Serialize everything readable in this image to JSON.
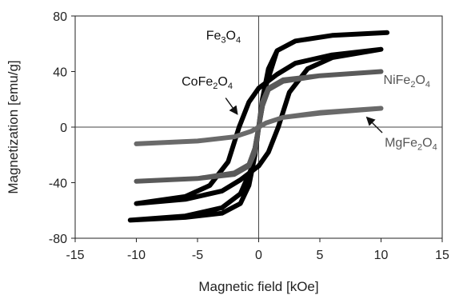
{
  "chart_data": {
    "type": "line",
    "xlabel": "Magnetic field [kOe]",
    "ylabel": "Magnetization [emu/g]",
    "xlim": [
      -15,
      15
    ],
    "ylim": [
      -80,
      80
    ],
    "x_ticks": [
      -15,
      -10,
      -5,
      0,
      5,
      10,
      15
    ],
    "y_ticks": [
      -80,
      -40,
      0,
      40,
      80
    ],
    "x_tick_labels": [
      "-15",
      "-10",
      "-5",
      "0",
      "5",
      "10",
      "15"
    ],
    "y_tick_labels": [
      "-80",
      "-40",
      "0",
      "40",
      "80"
    ],
    "grid": false,
    "zero_lines": true,
    "legend": "none",
    "series": [
      {
        "name": "Fe3O4",
        "label_main": "Fe",
        "label_parts": [
          {
            "t": "Fe"
          },
          {
            "t": "3",
            "sub": true
          },
          {
            "t": "O"
          },
          {
            "t": "4",
            "sub": true
          }
        ],
        "color": "#000000",
        "label_at": [
          -4.3,
          63
        ],
        "upper": [
          [
            -10.5,
            -67
          ],
          [
            -6,
            -64
          ],
          [
            -3,
            -58
          ],
          [
            -1.5,
            -48
          ],
          [
            -0.6,
            -30
          ],
          [
            0,
            0
          ],
          [
            0.3,
            20
          ],
          [
            0.8,
            42
          ],
          [
            1.5,
            55
          ],
          [
            3,
            62
          ],
          [
            6,
            66
          ],
          [
            10.5,
            68
          ]
        ],
        "lower": [
          [
            10.5,
            68
          ],
          [
            6,
            66
          ],
          [
            3,
            62
          ],
          [
            1.5,
            55
          ],
          [
            0.6,
            30
          ],
          [
            0,
            0
          ],
          [
            -0.3,
            -20
          ],
          [
            -0.8,
            -42
          ],
          [
            -1.5,
            -55
          ],
          [
            -3,
            -62
          ],
          [
            -6,
            -65
          ],
          [
            -10.5,
            -67
          ]
        ]
      },
      {
        "name": "CoFe2O4",
        "label_main": "CoFe",
        "label_parts": [
          {
            "t": "CoFe"
          },
          {
            "t": "2",
            "sub": true
          },
          {
            "t": "O"
          },
          {
            "t": "4",
            "sub": true
          }
        ],
        "color": "#000000",
        "label_at": [
          -6.3,
          30
        ],
        "arrow_from": [
          -2.7,
          21
        ],
        "arrow_to": [
          -1.8,
          10
        ],
        "upper": [
          [
            -10,
            -55
          ],
          [
            -6,
            -50
          ],
          [
            -4,
            -42
          ],
          [
            -2.5,
            -25
          ],
          [
            -1.6,
            0
          ],
          [
            -0.8,
            18
          ],
          [
            0,
            28
          ],
          [
            1.5,
            38
          ],
          [
            3,
            46
          ],
          [
            6,
            52
          ],
          [
            10,
            56
          ]
        ],
        "lower": [
          [
            10,
            56
          ],
          [
            6,
            50
          ],
          [
            4,
            42
          ],
          [
            2.5,
            25
          ],
          [
            1.6,
            0
          ],
          [
            0.8,
            -18
          ],
          [
            0,
            -28
          ],
          [
            -1.5,
            -38
          ],
          [
            -3,
            -46
          ],
          [
            -6,
            -52
          ],
          [
            -10,
            -55
          ]
        ]
      },
      {
        "name": "NiFe2O4",
        "label_main": "NiFe",
        "label_parts": [
          {
            "t": "NiFe"
          },
          {
            "t": "2",
            "sub": true
          },
          {
            "t": "O"
          },
          {
            "t": "4",
            "sub": true
          }
        ],
        "color": "#5a5a5a",
        "label_at": [
          10.2,
          31
        ],
        "upper": [
          [
            -10,
            -39
          ],
          [
            -5,
            -37
          ],
          [
            -2,
            -33
          ],
          [
            -0.8,
            -27
          ],
          [
            -0.3,
            -15
          ],
          [
            0,
            0
          ],
          [
            0.3,
            18
          ],
          [
            0.8,
            28
          ],
          [
            2,
            34
          ],
          [
            5,
            37
          ],
          [
            10,
            40
          ]
        ],
        "lower": [
          [
            10,
            40
          ],
          [
            5,
            37
          ],
          [
            2,
            33
          ],
          [
            0.8,
            27
          ],
          [
            0.3,
            15
          ],
          [
            0,
            0
          ],
          [
            -0.3,
            -18
          ],
          [
            -0.8,
            -28
          ],
          [
            -2,
            -34
          ],
          [
            -5,
            -37
          ],
          [
            -10,
            -39
          ]
        ]
      },
      {
        "name": "MgFe2O4",
        "label_main": "MgFe",
        "label_parts": [
          {
            "t": "MgFe"
          },
          {
            "t": "2",
            "sub": true
          },
          {
            "t": "O"
          },
          {
            "t": "4",
            "sub": true
          }
        ],
        "color": "#6a6a6a",
        "label_at": [
          10.3,
          -14
        ],
        "arrow_from": [
          10.1,
          -4
        ],
        "arrow_to": [
          8.9,
          6.5
        ],
        "upper": [
          [
            -10,
            -12
          ],
          [
            -5,
            -10
          ],
          [
            -2,
            -7
          ],
          [
            -0.6,
            -3
          ],
          [
            0,
            0
          ],
          [
            0.6,
            3
          ],
          [
            2,
            7
          ],
          [
            5,
            10.5
          ],
          [
            10,
            13.5
          ]
        ],
        "lower": [
          [
            10,
            13.5
          ],
          [
            5,
            10
          ],
          [
            2,
            7
          ],
          [
            0.6,
            3
          ],
          [
            0,
            0
          ],
          [
            -0.6,
            -3
          ],
          [
            -2,
            -7
          ],
          [
            -5,
            -10
          ],
          [
            -10,
            -12
          ]
        ]
      }
    ]
  }
}
